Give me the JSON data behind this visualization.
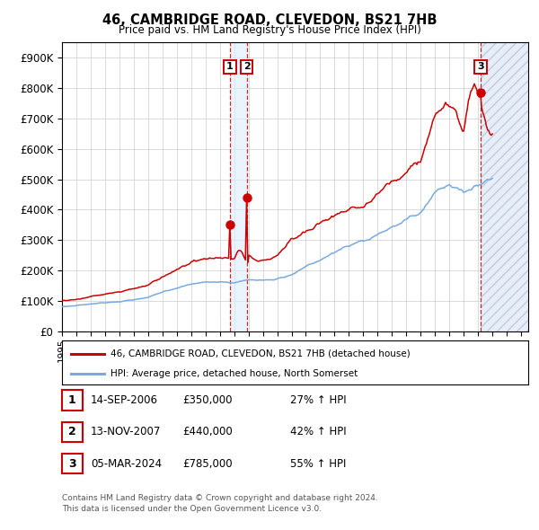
{
  "title1": "46, CAMBRIDGE ROAD, CLEVEDON, BS21 7HB",
  "title2": "Price paid vs. HM Land Registry's House Price Index (HPI)",
  "legend_line1": "46, CAMBRIDGE ROAD, CLEVEDON, BS21 7HB (detached house)",
  "legend_line2": "HPI: Average price, detached house, North Somerset",
  "sale1_date": "14-SEP-2006",
  "sale1_price": 350000,
  "sale1_hpi": "27%",
  "sale2_date": "13-NOV-2007",
  "sale2_price": 440000,
  "sale2_hpi": "42%",
  "sale3_date": "05-MAR-2024",
  "sale3_price": 785000,
  "sale3_hpi": "55%",
  "hpi_color": "#7aaadd",
  "price_color": "#cc0000",
  "background_color": "#ffffff",
  "grid_color": "#cccccc",
  "sale1_x": 2006.71,
  "sale2_x": 2007.87,
  "sale3_x": 2024.18,
  "ylim_max": 950000,
  "xlim_min": 1995.0,
  "xlim_max": 2027.5,
  "footnote1": "Contains HM Land Registry data © Crown copyright and database right 2024.",
  "footnote2": "This data is licensed under the Open Government Licence v3.0."
}
